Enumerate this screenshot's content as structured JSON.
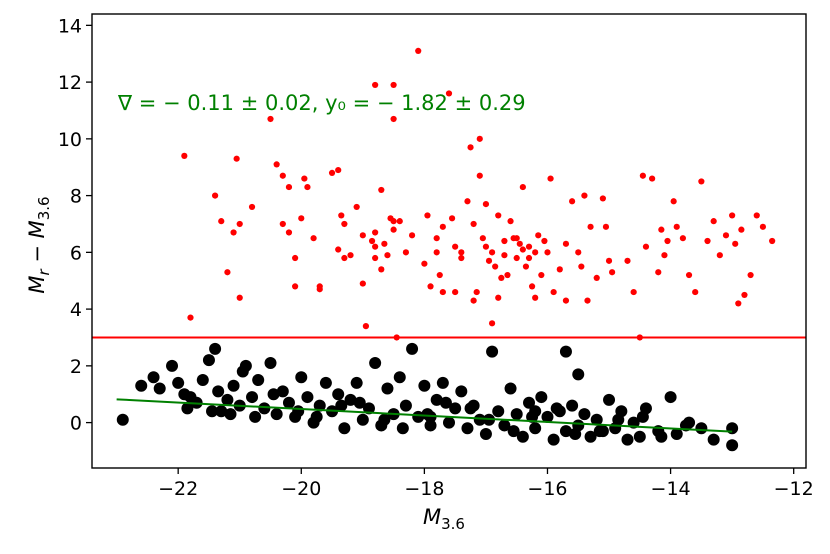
{
  "chart_data": {
    "type": "scatter",
    "xlabel": "M_{3.6}",
    "ylabel": "M_r − M_{3.6}",
    "xlim": [
      -23.4,
      -11.8
    ],
    "ylim": [
      -1.6,
      14.4
    ],
    "xticks": [
      -22,
      -20,
      -18,
      -16,
      -14,
      -12
    ],
    "yticks": [
      0,
      2,
      4,
      6,
      8,
      10,
      12,
      14
    ],
    "annotation": "∇ = − 0.11 ± 0.02, y₀ = − 1.82 ± 0.29",
    "colors": {
      "red": "#ff0000",
      "black": "#000000",
      "fit": "#008000",
      "axes": "#000000"
    },
    "threshold": {
      "y": 3.0,
      "color": "#ff0000"
    },
    "fit_line": {
      "x": [
        -23.0,
        -13.0
      ],
      "y": [
        0.82,
        -0.32
      ],
      "color": "#008000"
    },
    "series": [
      {
        "color": "#ff0000",
        "marker_size": "small",
        "points": [
          [
            -21.9,
            9.4
          ],
          [
            -21.8,
            3.7
          ],
          [
            -21.4,
            8.0
          ],
          [
            -21.3,
            7.1
          ],
          [
            -21.2,
            5.3
          ],
          [
            -21.1,
            6.7
          ],
          [
            -21.05,
            9.3
          ],
          [
            -21.0,
            7.0
          ],
          [
            -21.0,
            4.4
          ],
          [
            -20.8,
            7.6
          ],
          [
            -20.5,
            10.7
          ],
          [
            -20.4,
            9.1
          ],
          [
            -20.3,
            8.7
          ],
          [
            -20.3,
            7.0
          ],
          [
            -20.2,
            6.7
          ],
          [
            -20.2,
            8.3
          ],
          [
            -20.1,
            5.8
          ],
          [
            -20.1,
            4.8
          ],
          [
            -20.0,
            7.2
          ],
          [
            -19.95,
            8.6
          ],
          [
            -19.9,
            8.3
          ],
          [
            -19.8,
            6.5
          ],
          [
            -19.7,
            4.8
          ],
          [
            -19.7,
            4.7
          ],
          [
            -19.5,
            8.8
          ],
          [
            -19.4,
            8.9
          ],
          [
            -19.4,
            6.1
          ],
          [
            -19.35,
            7.3
          ],
          [
            -19.3,
            7.0
          ],
          [
            -19.3,
            5.8
          ],
          [
            -19.2,
            5.9
          ],
          [
            -19.1,
            7.6
          ],
          [
            -19.0,
            6.6
          ],
          [
            -19.0,
            4.9
          ],
          [
            -18.95,
            3.4
          ],
          [
            -18.85,
            6.4
          ],
          [
            -18.8,
            5.8
          ],
          [
            -18.8,
            6.2
          ],
          [
            -18.8,
            6.7
          ],
          [
            -18.8,
            11.9
          ],
          [
            -18.7,
            8.2
          ],
          [
            -18.7,
            5.4
          ],
          [
            -18.65,
            6.3
          ],
          [
            -18.6,
            5.9
          ],
          [
            -18.55,
            7.2
          ],
          [
            -18.5,
            6.8
          ],
          [
            -18.5,
            7.1
          ],
          [
            -18.5,
            11.9
          ],
          [
            -18.5,
            10.7
          ],
          [
            -18.45,
            3.0
          ],
          [
            -18.4,
            7.1
          ],
          [
            -18.3,
            6.0
          ],
          [
            -18.2,
            6.6
          ],
          [
            -18.1,
            13.1
          ],
          [
            -18.0,
            5.6
          ],
          [
            -17.95,
            7.3
          ],
          [
            -17.9,
            4.8
          ],
          [
            -17.8,
            6.5
          ],
          [
            -17.8,
            6.0
          ],
          [
            -17.75,
            5.2
          ],
          [
            -17.7,
            6.9
          ],
          [
            -17.7,
            4.6
          ],
          [
            -17.6,
            11.6
          ],
          [
            -17.55,
            7.2
          ],
          [
            -17.5,
            6.2
          ],
          [
            -17.5,
            4.6
          ],
          [
            -17.4,
            5.8
          ],
          [
            -17.4,
            6.0
          ],
          [
            -17.3,
            7.8
          ],
          [
            -17.25,
            9.7
          ],
          [
            -17.2,
            7.0
          ],
          [
            -17.2,
            4.3
          ],
          [
            -17.15,
            4.6
          ],
          [
            -17.1,
            10.0
          ],
          [
            -17.1,
            8.7
          ],
          [
            -17.05,
            6.5
          ],
          [
            -17.0,
            7.7
          ],
          [
            -17.0,
            6.2
          ],
          [
            -16.95,
            5.7
          ],
          [
            -16.9,
            3.5
          ],
          [
            -16.9,
            6.0
          ],
          [
            -16.85,
            5.5
          ],
          [
            -16.8,
            7.3
          ],
          [
            -16.8,
            4.4
          ],
          [
            -16.75,
            5.1
          ],
          [
            -16.7,
            6.4
          ],
          [
            -16.7,
            5.9
          ],
          [
            -16.65,
            5.2
          ],
          [
            -16.6,
            7.1
          ],
          [
            -16.55,
            6.5
          ],
          [
            -16.5,
            6.5
          ],
          [
            -16.5,
            5.8
          ],
          [
            -16.45,
            6.3
          ],
          [
            -16.4,
            8.3
          ],
          [
            -16.4,
            6.1
          ],
          [
            -16.35,
            5.5
          ],
          [
            -16.3,
            6.2
          ],
          [
            -16.3,
            5.8
          ],
          [
            -16.25,
            4.8
          ],
          [
            -16.2,
            6.0
          ],
          [
            -16.2,
            4.4
          ],
          [
            -16.15,
            6.6
          ],
          [
            -16.1,
            5.2
          ],
          [
            -16.05,
            6.4
          ],
          [
            -16.0,
            6.0
          ],
          [
            -15.95,
            8.6
          ],
          [
            -15.9,
            4.6
          ],
          [
            -15.8,
            5.4
          ],
          [
            -15.7,
            4.3
          ],
          [
            -15.7,
            6.3
          ],
          [
            -15.6,
            7.8
          ],
          [
            -15.5,
            6.0
          ],
          [
            -15.45,
            5.5
          ],
          [
            -15.4,
            8.0
          ],
          [
            -15.35,
            4.3
          ],
          [
            -15.3,
            6.9
          ],
          [
            -15.2,
            5.1
          ],
          [
            -15.1,
            7.9
          ],
          [
            -15.05,
            6.9
          ],
          [
            -15.0,
            5.7
          ],
          [
            -14.95,
            5.3
          ],
          [
            -14.7,
            5.7
          ],
          [
            -14.6,
            4.6
          ],
          [
            -14.5,
            3.0
          ],
          [
            -14.45,
            8.7
          ],
          [
            -14.4,
            6.2
          ],
          [
            -14.3,
            8.6
          ],
          [
            -14.2,
            5.3
          ],
          [
            -14.15,
            6.8
          ],
          [
            -14.1,
            5.9
          ],
          [
            -14.05,
            6.4
          ],
          [
            -13.95,
            7.8
          ],
          [
            -13.9,
            6.9
          ],
          [
            -13.8,
            6.5
          ],
          [
            -13.7,
            5.2
          ],
          [
            -13.6,
            4.6
          ],
          [
            -13.5,
            8.5
          ],
          [
            -13.4,
            6.4
          ],
          [
            -13.3,
            7.1
          ],
          [
            -13.2,
            5.9
          ],
          [
            -13.1,
            6.6
          ],
          [
            -13.0,
            7.3
          ],
          [
            -12.95,
            6.3
          ],
          [
            -12.9,
            4.2
          ],
          [
            -12.85,
            6.8
          ],
          [
            -12.8,
            4.5
          ],
          [
            -12.7,
            5.2
          ],
          [
            -12.6,
            7.3
          ],
          [
            -12.5,
            6.9
          ],
          [
            -12.35,
            6.4
          ]
        ]
      },
      {
        "color": "#000000",
        "marker_size": "large",
        "points": [
          [
            -22.9,
            0.1
          ],
          [
            -22.6,
            1.3
          ],
          [
            -22.4,
            1.6
          ],
          [
            -22.3,
            1.2
          ],
          [
            -22.1,
            2.0
          ],
          [
            -22.0,
            1.4
          ],
          [
            -21.9,
            1.0
          ],
          [
            -21.8,
            0.9
          ],
          [
            -21.7,
            0.7
          ],
          [
            -21.6,
            1.5
          ],
          [
            -21.5,
            2.2
          ],
          [
            -21.4,
            2.6
          ],
          [
            -21.35,
            1.1
          ],
          [
            -21.3,
            0.4
          ],
          [
            -21.2,
            0.8
          ],
          [
            -21.1,
            1.3
          ],
          [
            -21.0,
            0.6
          ],
          [
            -20.95,
            1.8
          ],
          [
            -20.9,
            2.0
          ],
          [
            -20.8,
            0.9
          ],
          [
            -20.7,
            1.5
          ],
          [
            -20.6,
            0.5
          ],
          [
            -20.5,
            2.1
          ],
          [
            -20.4,
            0.3
          ],
          [
            -20.3,
            1.1
          ],
          [
            -20.2,
            0.7
          ],
          [
            -20.1,
            0.2
          ],
          [
            -20.0,
            1.6
          ],
          [
            -19.9,
            0.9
          ],
          [
            -19.8,
            0.0
          ],
          [
            -19.7,
            0.6
          ],
          [
            -19.6,
            1.4
          ],
          [
            -19.5,
            0.4
          ],
          [
            -19.4,
            1.0
          ],
          [
            -19.3,
            -0.2
          ],
          [
            -19.2,
            0.8
          ],
          [
            -19.1,
            1.4
          ],
          [
            -19.0,
            0.1
          ],
          [
            -18.9,
            0.5
          ],
          [
            -18.8,
            2.1
          ],
          [
            -18.7,
            -0.1
          ],
          [
            -18.6,
            1.2
          ],
          [
            -18.5,
            0.3
          ],
          [
            -18.4,
            1.6
          ],
          [
            -18.3,
            0.6
          ],
          [
            -18.2,
            2.6
          ],
          [
            -18.1,
            0.2
          ],
          [
            -18.0,
            1.3
          ],
          [
            -17.9,
            -0.1
          ],
          [
            -17.8,
            0.8
          ],
          [
            -17.7,
            1.4
          ],
          [
            -17.6,
            0.0
          ],
          [
            -17.5,
            0.5
          ],
          [
            -17.4,
            1.1
          ],
          [
            -17.3,
            -0.2
          ],
          [
            -17.2,
            0.6
          ],
          [
            -17.1,
            0.1
          ],
          [
            -17.0,
            -0.4
          ],
          [
            -16.9,
            2.5
          ],
          [
            -16.8,
            0.4
          ],
          [
            -16.7,
            -0.1
          ],
          [
            -16.6,
            1.2
          ],
          [
            -16.5,
            0.3
          ],
          [
            -16.4,
            -0.5
          ],
          [
            -16.3,
            0.7
          ],
          [
            -16.2,
            -0.2
          ],
          [
            -16.1,
            0.9
          ],
          [
            -16.0,
            0.2
          ],
          [
            -15.9,
            -0.6
          ],
          [
            -15.8,
            0.4
          ],
          [
            -15.7,
            -0.3
          ],
          [
            -15.6,
            0.6
          ],
          [
            -15.5,
            -0.1
          ],
          [
            -15.4,
            0.3
          ],
          [
            -15.3,
            -0.5
          ],
          [
            -15.2,
            0.1
          ],
          [
            -15.1,
            -0.3
          ],
          [
            -15.0,
            0.8
          ],
          [
            -14.9,
            -0.2
          ],
          [
            -14.8,
            0.4
          ],
          [
            -14.7,
            -0.6
          ],
          [
            -14.6,
            0.0
          ],
          [
            -14.5,
            -0.5
          ],
          [
            -14.4,
            0.5
          ],
          [
            -14.2,
            -0.3
          ],
          [
            -14.0,
            0.9
          ],
          [
            -13.9,
            -0.4
          ],
          [
            -13.7,
            0.0
          ],
          [
            -13.5,
            -0.2
          ],
          [
            -13.3,
            -0.6
          ],
          [
            -13.0,
            -0.2
          ],
          [
            -13.0,
            -0.8
          ],
          [
            -15.7,
            2.5
          ],
          [
            -15.5,
            1.7
          ],
          [
            -16.2,
            0.4
          ],
          [
            -17.9,
            0.2
          ],
          [
            -21.45,
            0.4
          ],
          [
            -20.75,
            0.2
          ],
          [
            -20.05,
            0.4
          ],
          [
            -19.35,
            0.6
          ],
          [
            -18.65,
            0.1
          ],
          [
            -17.95,
            0.3
          ],
          [
            -17.25,
            0.5
          ],
          [
            -16.55,
            -0.3
          ],
          [
            -15.85,
            0.5
          ],
          [
            -15.15,
            -0.3
          ],
          [
            -14.45,
            0.2
          ],
          [
            -13.75,
            -0.1
          ],
          [
            -21.85,
            0.5
          ],
          [
            -21.15,
            0.3
          ],
          [
            -20.45,
            1.0
          ],
          [
            -19.75,
            0.2
          ],
          [
            -19.05,
            0.7
          ],
          [
            -18.35,
            -0.2
          ],
          [
            -17.65,
            0.7
          ],
          [
            -16.95,
            0.1
          ],
          [
            -16.25,
            0.2
          ],
          [
            -15.55,
            -0.4
          ],
          [
            -14.85,
            0.1
          ],
          [
            -14.15,
            -0.5
          ]
        ]
      }
    ]
  }
}
